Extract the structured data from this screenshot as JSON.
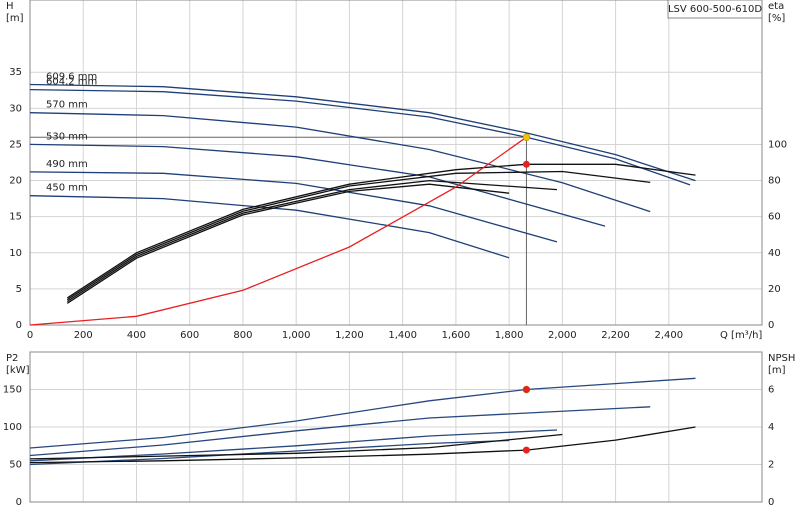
{
  "chart_data": [
    {
      "type": "line",
      "title": "LSV 600-500-610D",
      "xlabel": "Q [m³/h]",
      "ylabel": "H",
      "yunit": "[m]",
      "y2label": "eta",
      "y2unit": "[%]",
      "xlim": [
        0,
        2750
      ],
      "ylim": [
        0,
        45
      ],
      "y2lim": [
        0,
        180
      ],
      "xticks": [
        0,
        200,
        400,
        600,
        800,
        {
          "value": 1000,
          "label": "1,000"
        },
        {
          "value": 1200,
          "label": "1,200"
        },
        {
          "value": 1400,
          "label": "1,400"
        },
        {
          "value": 1600,
          "label": "1,600"
        },
        {
          "value": 1800,
          "label": "1,800"
        },
        {
          "value": 2000,
          "label": "2,000"
        },
        {
          "value": 2200,
          "label": "2,200"
        },
        {
          "value": 2400,
          "label": "2,400"
        }
      ],
      "yticks": [
        0,
        5,
        10,
        15,
        20,
        25,
        30,
        35
      ],
      "y2ticks": [
        0,
        20,
        40,
        60,
        80,
        100
      ],
      "grid": true,
      "series": [
        {
          "name": "609.6 mm",
          "color": "#1f3f78",
          "x": [
            0,
            500,
            1000,
            1500,
            1865,
            2200,
            2500
          ],
          "values": [
            33.3,
            33.0,
            31.6,
            29.4,
            26.6,
            23.6,
            20.0
          ]
        },
        {
          "name": "604.2 mm",
          "color": "#1f3f78",
          "x": [
            0,
            500,
            1000,
            1500,
            1865,
            2200,
            2480
          ],
          "values": [
            32.6,
            32.3,
            31.0,
            28.8,
            26.0,
            23.0,
            19.4
          ]
        },
        {
          "name": "570 mm",
          "color": "#1f3f78",
          "x": [
            0,
            500,
            1000,
            1500,
            2000,
            2330
          ],
          "values": [
            29.4,
            29.0,
            27.4,
            24.3,
            19.7,
            15.7
          ]
        },
        {
          "name": "530 mm",
          "color": "#1f3f78",
          "x": [
            0,
            500,
            1000,
            1500,
            2160
          ],
          "values": [
            25.0,
            24.7,
            23.3,
            20.5,
            13.7
          ]
        },
        {
          "name": "490 mm",
          "color": "#1f3f78",
          "x": [
            0,
            500,
            1000,
            1500,
            1980
          ],
          "values": [
            21.2,
            21.0,
            19.6,
            16.5,
            11.5
          ]
        },
        {
          "name": "450 mm",
          "color": "#1f3f78",
          "x": [
            0,
            500,
            1000,
            1500,
            1800
          ],
          "values": [
            17.9,
            17.5,
            15.9,
            12.8,
            9.3
          ]
        },
        {
          "color": "#111111",
          "axis": "y2",
          "x": [
            140,
            400,
            800,
            1200,
            1600,
            1865,
            2200,
            2500
          ],
          "values": [
            15,
            40,
            64,
            78,
            86,
            89,
            89,
            83
          ]
        },
        {
          "color": "#111111",
          "axis": "y2",
          "x": [
            140,
            400,
            800,
            1200,
            1600,
            2000,
            2330
          ],
          "values": [
            14,
            39,
            63,
            77,
            84,
            85,
            79
          ]
        },
        {
          "color": "#111111",
          "axis": "y2",
          "x": [
            140,
            400,
            800,
            1200,
            1500,
            1980
          ],
          "values": [
            13,
            38,
            62,
            75,
            80,
            75
          ]
        },
        {
          "color": "#111111",
          "axis": "y2",
          "x": [
            140,
            400,
            800,
            1200,
            1500,
            1800
          ],
          "values": [
            12,
            37,
            61,
            74,
            78,
            73
          ]
        },
        {
          "color": "#e82020",
          "x": [
            0,
            400,
            800,
            1200,
            1600,
            1865
          ],
          "values": [
            0,
            1.2,
            4.8,
            10.8,
            19.1,
            26.0
          ]
        }
      ],
      "operating_point": {
        "x": 1865,
        "y": 26,
        "y2": 89,
        "y_color": "#f2c200",
        "y2_color": "#e82020"
      }
    },
    {
      "type": "line",
      "ylabel": "P2",
      "yunit": "[kW]",
      "y2label": "NPSH",
      "y2unit": "[m]",
      "xlim": [
        0,
        2750
      ],
      "ylim": [
        0,
        200
      ],
      "y2lim": [
        0,
        8
      ],
      "xticks": [
        0,
        200,
        400,
        600,
        800,
        1000,
        1200,
        1400,
        1600,
        1800,
        2000,
        2200,
        2400
      ],
      "yticks": [
        0,
        50,
        100,
        150
      ],
      "y2ticks": [
        0,
        2,
        4,
        6
      ],
      "grid": true,
      "series": [
        {
          "color": "#27477f",
          "x": [
            0,
            500,
            1000,
            1500,
            1865,
            2500
          ],
          "values": [
            72,
            86,
            108,
            135,
            150,
            165
          ]
        },
        {
          "color": "#27477f",
          "x": [
            0,
            500,
            1000,
            1500,
            2330
          ],
          "values": [
            62,
            76,
            95,
            112,
            127
          ]
        },
        {
          "color": "#27477f",
          "x": [
            0,
            500,
            1000,
            1500,
            1980
          ],
          "values": [
            55,
            64,
            75,
            88,
            96
          ]
        },
        {
          "color": "#27477f",
          "x": [
            0,
            500,
            1000,
            1500,
            1800
          ],
          "values": [
            50,
            58,
            68,
            78,
            82
          ]
        },
        {
          "color": "#111111",
          "axis": "y2",
          "x": [
            0,
            500,
            1000,
            1500,
            1865,
            2200,
            2500
          ],
          "values": [
            2.1,
            2.2,
            2.35,
            2.55,
            2.77,
            3.3,
            4.0
          ]
        },
        {
          "color": "#111111",
          "axis": "y2",
          "x": [
            0,
            500,
            1000,
            1500,
            2000
          ],
          "values": [
            2.3,
            2.45,
            2.6,
            2.9,
            3.6
          ]
        }
      ],
      "operating_point": {
        "x": 1865,
        "y": 150,
        "y2": 2.77,
        "y_color": "#e82020",
        "y2_color": "#e82020"
      }
    }
  ]
}
